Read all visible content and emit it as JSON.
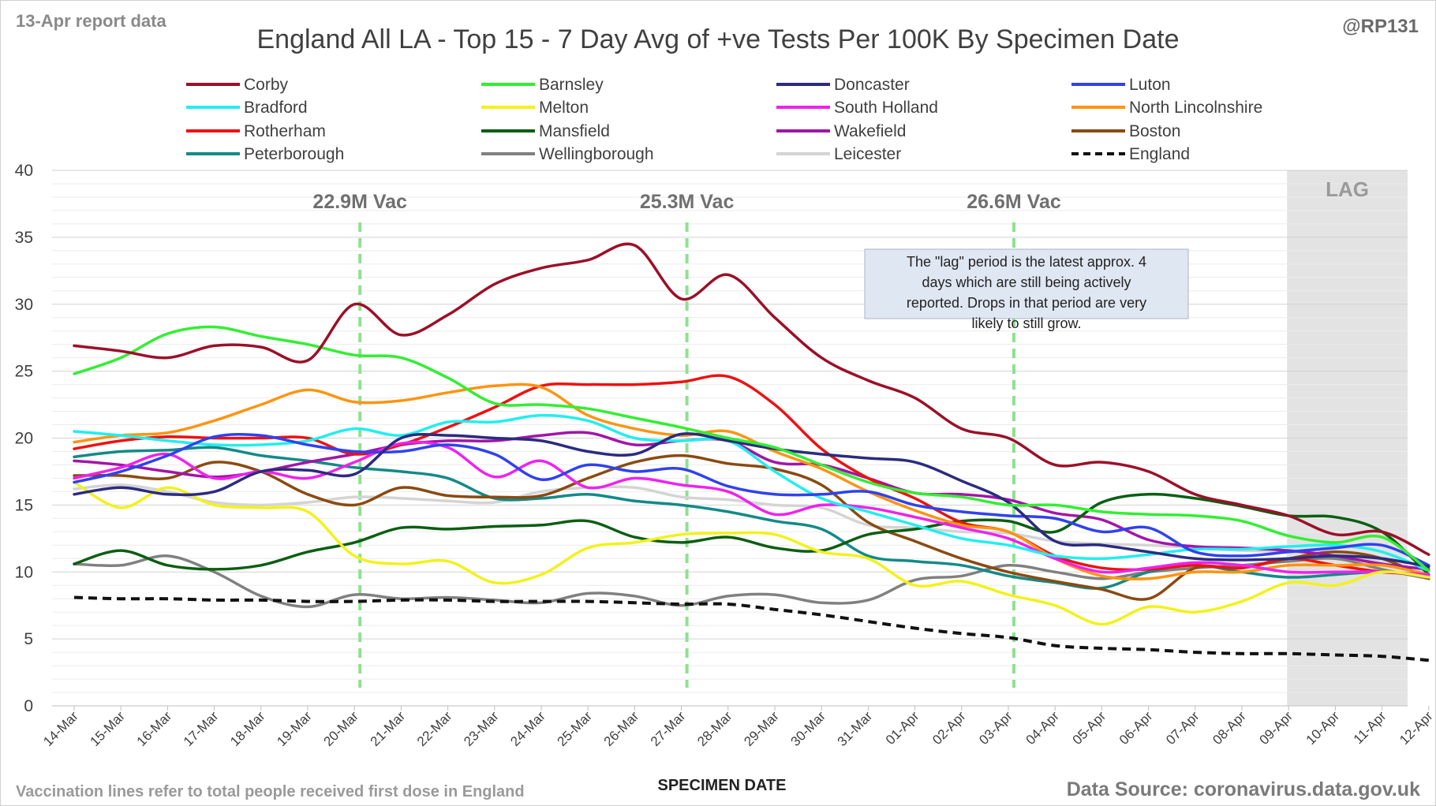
{
  "header": {
    "report_label": "13-Apr report data",
    "title": "England All LA - Top 15 - 7 Day Avg of +ve Tests Per 100K By Specimen Date",
    "handle": "@RP131"
  },
  "footer": {
    "note": "Vaccination lines refer to total people received first dose in England",
    "source": "Data Source: coronavirus.data.gov.uk"
  },
  "annotation_box": "The \"lag\" period is the latest approx. 4 days which are still being actively reported.  Drops in that period are very likely to still grow.",
  "colors": {
    "Corby": "#9b1028",
    "Barnsley": "#33ee33",
    "Doncaster": "#2b2b80",
    "Luton": "#2f42ee",
    "Bradford": "#22eeee",
    "Melton": "#f2f21a",
    "South Holland": "#ee22ee",
    "North Lincolnshire": "#ff9410",
    "Rotherham": "#ee1111",
    "Mansfield": "#0c5e12",
    "Wakefield": "#a215a8",
    "Boston": "#8b4a10",
    "Peterborough": "#138a88",
    "Wellingborough": "#808080",
    "Leicester": "#d4d4d4",
    "England": "#111111",
    "vac_line": "#90e090",
    "lag_fill": "#e3e3e3"
  },
  "chart_data": {
    "type": "line",
    "title": "England All LA - Top 15 - 7 Day Avg of +ve Tests Per 100K By Specimen Date",
    "xlabel": "SPECIMEN DATE",
    "ylabel": "",
    "ylim": [
      0,
      40
    ],
    "yticks": [
      "0",
      "5",
      "10",
      "15",
      "20",
      "25",
      "30",
      "35",
      "40"
    ],
    "grid": true,
    "legend_position": "top",
    "categories": [
      "14-Mar",
      "15-Mar",
      "16-Mar",
      "17-Mar",
      "18-Mar",
      "19-Mar",
      "20-Mar",
      "21-Mar",
      "22-Mar",
      "23-Mar",
      "24-Mar",
      "25-Mar",
      "26-Mar",
      "27-Mar",
      "28-Mar",
      "29-Mar",
      "30-Mar",
      "31-Mar",
      "01-Apr",
      "02-Apr",
      "03-Apr",
      "04-Apr",
      "05-Apr",
      "06-Apr",
      "07-Apr",
      "08-Apr",
      "09-Apr",
      "10-Apr",
      "11-Apr",
      "12-Apr"
    ],
    "vaccination_lines": [
      {
        "label": "22.9M Vac",
        "x": "20-Mar"
      },
      {
        "label": "25.3M Vac",
        "x": "27-Mar"
      },
      {
        "label": "26.6M Vac",
        "x": "03-Apr"
      }
    ],
    "lag_region": {
      "label": "LAG",
      "from": "09-Apr",
      "to": "12-Apr"
    },
    "series": [
      {
        "name": "Corby",
        "dashed": false,
        "values": [
          26.9,
          26.5,
          26.0,
          26.9,
          26.8,
          25.8,
          30.0,
          27.7,
          29.2,
          31.5,
          32.7,
          33.3,
          34.4,
          30.4,
          32.2,
          29.0,
          26.0,
          24.3,
          23.0,
          20.7,
          20.0,
          18.0,
          18.2,
          17.5,
          15.8,
          15.0,
          14.2,
          12.8,
          13.0,
          11.3
        ]
      },
      {
        "name": "Barnsley",
        "dashed": false,
        "values": [
          24.8,
          26.0,
          27.8,
          28.3,
          27.6,
          27.0,
          26.2,
          26.0,
          24.5,
          22.6,
          22.5,
          22.2,
          21.5,
          20.8,
          20.0,
          19.3,
          18.0,
          16.7,
          15.9,
          15.6,
          15.0,
          15.0,
          14.5,
          14.3,
          14.2,
          13.8,
          12.7,
          12.2,
          12.6,
          10.1
        ]
      },
      {
        "name": "Doncaster",
        "dashed": false,
        "values": [
          15.8,
          16.3,
          15.8,
          16.0,
          17.5,
          17.6,
          17.3,
          20.0,
          20.2,
          20.0,
          19.8,
          19.0,
          18.8,
          20.3,
          19.8,
          19.2,
          18.8,
          18.5,
          18.2,
          16.8,
          15.2,
          12.3,
          12.0,
          11.5,
          11.0,
          10.9,
          11.0,
          11.2,
          11.0,
          10.4
        ]
      },
      {
        "name": "Luton",
        "dashed": false,
        "values": [
          16.7,
          17.5,
          18.7,
          20.1,
          20.2,
          19.5,
          19.0,
          19.0,
          19.5,
          18.8,
          16.9,
          18.0,
          17.5,
          17.7,
          16.4,
          15.8,
          15.8,
          16.0,
          15.0,
          14.5,
          14.2,
          14.0,
          13.0,
          13.3,
          11.5,
          11.2,
          11.5,
          11.8,
          12.0,
          10.5
        ]
      },
      {
        "name": "Bradford",
        "dashed": false,
        "values": [
          20.5,
          20.2,
          19.8,
          19.5,
          19.5,
          19.8,
          20.7,
          20.2,
          21.2,
          21.2,
          21.7,
          21.3,
          20.0,
          19.8,
          19.8,
          17.5,
          15.5,
          14.5,
          13.5,
          12.5,
          12.0,
          11.2,
          11.0,
          11.3,
          11.7,
          11.7,
          11.9,
          12.0,
          11.5,
          10.1
        ]
      },
      {
        "name": "Melton",
        "dashed": false,
        "values": [
          16.7,
          14.8,
          16.3,
          15.0,
          14.8,
          14.5,
          11.2,
          10.6,
          10.8,
          9.2,
          9.8,
          11.8,
          12.2,
          12.8,
          12.9,
          12.8,
          11.5,
          11.0,
          9.0,
          9.3,
          8.3,
          7.5,
          6.1,
          7.4,
          7.0,
          7.8,
          9.2,
          9.0,
          10.0,
          9.6
        ]
      },
      {
        "name": "South Holland",
        "dashed": false,
        "values": [
          17.0,
          17.8,
          18.8,
          17.0,
          17.5,
          17.0,
          18.2,
          19.6,
          19.3,
          17.1,
          18.3,
          16.3,
          17.0,
          16.5,
          16.0,
          14.3,
          15.0,
          14.8,
          14.1,
          13.3,
          12.5,
          11.0,
          10.0,
          10.3,
          10.7,
          10.5,
          10.0,
          10.0,
          10.0,
          9.8
        ]
      },
      {
        "name": "North Lincolnshire",
        "dashed": false,
        "values": [
          19.7,
          20.2,
          20.4,
          21.3,
          22.5,
          23.6,
          22.7,
          22.8,
          23.4,
          23.9,
          23.8,
          21.7,
          20.7,
          20.2,
          20.5,
          19.0,
          17.7,
          16.0,
          14.6,
          13.5,
          13.0,
          11.0,
          9.7,
          9.5,
          10.0,
          10.0,
          10.5,
          10.5,
          10.5,
          9.8
        ]
      },
      {
        "name": "Rotherham",
        "dashed": false,
        "values": [
          19.2,
          19.8,
          20.1,
          20.0,
          20.0,
          20.0,
          18.8,
          19.5,
          20.8,
          22.3,
          23.9,
          24.0,
          24.0,
          24.2,
          24.6,
          22.5,
          19.2,
          17.0,
          15.5,
          13.7,
          13.0,
          11.2,
          10.3,
          10.2,
          10.5,
          10.3,
          11.0,
          10.5,
          10.0,
          9.8
        ]
      },
      {
        "name": "Mansfield",
        "dashed": false,
        "values": [
          10.6,
          11.6,
          10.5,
          10.2,
          10.5,
          11.5,
          12.2,
          13.3,
          13.2,
          13.4,
          13.5,
          13.8,
          12.6,
          12.2,
          12.6,
          11.8,
          11.6,
          12.8,
          13.2,
          13.8,
          13.8,
          13.0,
          15.2,
          15.8,
          15.5,
          14.9,
          14.2,
          14.1,
          13.0,
          9.8
        ]
      },
      {
        "name": "Wakefield",
        "dashed": false,
        "values": [
          18.3,
          18.0,
          17.5,
          17.1,
          17.5,
          18.2,
          18.8,
          19.5,
          19.8,
          19.8,
          20.2,
          20.4,
          19.5,
          19.8,
          19.8,
          18.2,
          18.0,
          17.0,
          15.9,
          15.8,
          15.4,
          14.4,
          13.9,
          12.4,
          11.9,
          11.8,
          11.6,
          11.2,
          10.6,
          10.2
        ]
      },
      {
        "name": "Boston",
        "dashed": false,
        "values": [
          17.2,
          17.2,
          17.0,
          18.2,
          17.5,
          15.8,
          15.0,
          16.3,
          15.7,
          15.6,
          15.7,
          17.0,
          18.2,
          18.7,
          18.1,
          17.7,
          16.5,
          13.7,
          12.3,
          11.0,
          10.0,
          9.3,
          8.7,
          8.0,
          10.3,
          10.3,
          11.0,
          11.5,
          11.0,
          9.5
        ]
      },
      {
        "name": "Peterborough",
        "dashed": false,
        "values": [
          18.6,
          19.0,
          19.1,
          19.3,
          18.7,
          18.3,
          17.8,
          17.5,
          17.0,
          15.5,
          15.5,
          15.8,
          15.3,
          15.0,
          14.5,
          13.8,
          13.2,
          11.2,
          10.8,
          10.5,
          9.7,
          9.2,
          8.8,
          10.0,
          10.5,
          10.0,
          9.6,
          9.8,
          10.0,
          9.7
        ]
      },
      {
        "name": "Wellingborough",
        "dashed": false,
        "values": [
          10.6,
          10.5,
          11.2,
          10.0,
          8.2,
          7.4,
          8.3,
          8.0,
          8.1,
          7.9,
          7.7,
          8.4,
          8.2,
          7.5,
          8.2,
          8.3,
          7.7,
          7.9,
          9.4,
          9.7,
          10.5,
          10.0,
          9.5,
          10.0,
          10.3,
          10.5,
          10.8,
          11.0,
          10.2,
          9.5
        ]
      },
      {
        "name": "Leicester",
        "dashed": false,
        "values": [
          16.2,
          16.5,
          16.0,
          15.2,
          15.0,
          15.2,
          15.6,
          15.5,
          15.3,
          15.2,
          16.0,
          16.3,
          16.3,
          15.6,
          15.4,
          15.0,
          14.8,
          13.5,
          13.3,
          13.0,
          12.9,
          12.3,
          12.1,
          12.0,
          11.8,
          11.6,
          11.5,
          11.3,
          10.7,
          9.9
        ]
      },
      {
        "name": "England",
        "dashed": true,
        "values": [
          8.1,
          8.0,
          8.0,
          7.9,
          7.9,
          7.8,
          7.8,
          7.9,
          7.9,
          7.8,
          7.8,
          7.8,
          7.7,
          7.6,
          7.6,
          7.2,
          6.8,
          6.3,
          5.8,
          5.4,
          5.1,
          4.5,
          4.3,
          4.2,
          4.0,
          3.9,
          3.9,
          3.8,
          3.7,
          3.4
        ]
      }
    ]
  }
}
